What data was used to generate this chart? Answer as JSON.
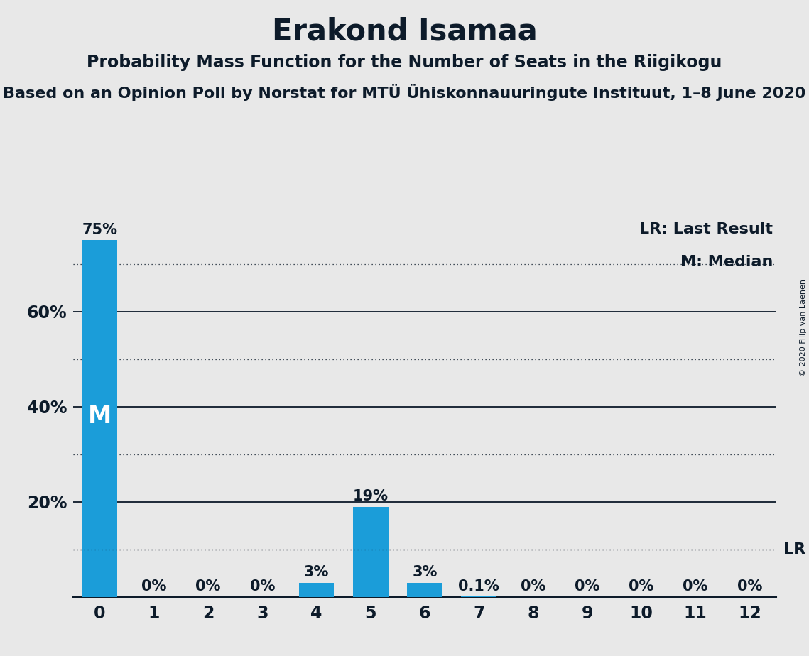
{
  "title": "Erakond Isamaa",
  "subtitle": "Probability Mass Function for the Number of Seats in the Riigikogu",
  "source_line": "Based on an Opinion Poll by Norstat for MTÜ Ühiskonnauuringute Instituut, 1–8 June 2020",
  "copyright": "© 2020 Filip van Laenen",
  "categories": [
    0,
    1,
    2,
    3,
    4,
    5,
    6,
    7,
    8,
    9,
    10,
    11,
    12
  ],
  "values": [
    0.75,
    0.0,
    0.0,
    0.0,
    0.03,
    0.19,
    0.03,
    0.001,
    0.0,
    0.0,
    0.0,
    0.0,
    0.0
  ],
  "bar_labels": [
    "75%",
    "0%",
    "0%",
    "0%",
    "3%",
    "19%",
    "3%",
    "0.1%",
    "0%",
    "0%",
    "0%",
    "0%",
    "0%"
  ],
  "bar_color": "#1B9DD9",
  "median_bar": 0,
  "median_label": "M",
  "lr_value": 0.1,
  "lr_label": "LR",
  "legend_lr": "LR: Last Result",
  "legend_m": "M: Median",
  "ylim": [
    0,
    0.8
  ],
  "yticks": [
    0.2,
    0.4,
    0.6
  ],
  "ytick_labels": [
    "20%",
    "40%",
    "60%"
  ],
  "background_color": "#E8E8E8",
  "text_color": "#0d1b2a",
  "solid_grid_values": [
    0.2,
    0.4,
    0.6
  ],
  "dotted_grid_values": [
    0.1,
    0.3,
    0.5,
    0.7
  ],
  "title_fontsize": 30,
  "subtitle_fontsize": 17,
  "source_fontsize": 16,
  "bar_label_fontsize": 15,
  "axis_tick_fontsize": 17,
  "legend_fontsize": 16,
  "median_fontsize": 24,
  "copyright_fontsize": 8
}
